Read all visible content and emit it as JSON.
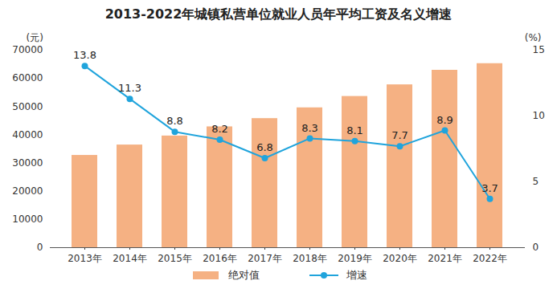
{
  "chart_data": {
    "type": "bar",
    "title": "2013-2022年城镇私营单位就业人员年平均工资及名义增速",
    "y_label": "(元)",
    "y2_label": "(%)",
    "categories": [
      "2013年",
      "2014年",
      "2015年",
      "2016年",
      "2017年",
      "2018年",
      "2019年",
      "2020年",
      "2021年",
      "2022年"
    ],
    "series": [
      {
        "name": "绝对值",
        "type": "bar",
        "color": "#f5b183",
        "values": [
          32706,
          36390,
          39589,
          42833,
          45761,
          49575,
          53604,
          57727,
          62884,
          65237
        ]
      },
      {
        "name": "增速",
        "type": "line",
        "axis": "y2",
        "color": "#20a4dc",
        "marker": "circle",
        "data_labels": true,
        "values": [
          13.8,
          11.3,
          8.8,
          8.2,
          6.8,
          8.3,
          8.1,
          7.7,
          8.9,
          3.7
        ]
      }
    ],
    "ylim": [
      0,
      70000
    ],
    "yticks": [
      0,
      10000,
      20000,
      30000,
      40000,
      50000,
      60000,
      70000
    ],
    "y2lim": [
      0,
      15
    ],
    "y2ticks": [
      0,
      5,
      10,
      15
    ],
    "legend": "bottom"
  }
}
